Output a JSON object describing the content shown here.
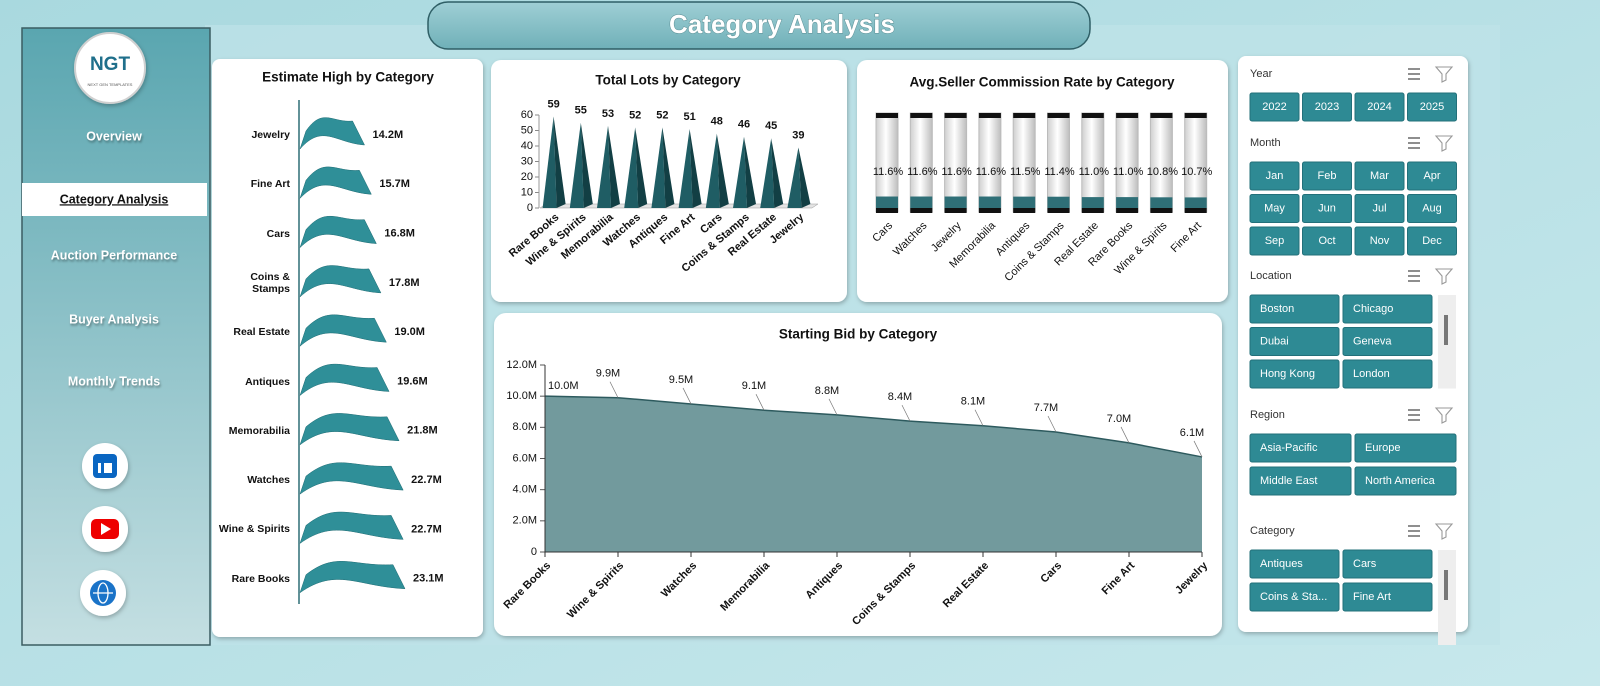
{
  "header": {
    "title": "Category Analysis"
  },
  "nav": {
    "logo": "NGT",
    "logo_subtitle": "NEXT GEN TEMPLATES",
    "active": 1,
    "items": [
      "Overview",
      "Category Analysis",
      "Auction Performance",
      "Buyer Analysis",
      "Monthly Trends"
    ]
  },
  "chart_data": [
    {
      "type": "hbar",
      "title": "Estimate High by Category",
      "color": "#2f8f98",
      "categories": [
        "Jewelry",
        "Fine Art",
        "Cars",
        "Coins & Stamps",
        "Real Estate",
        "Antiques",
        "Memorabilia",
        "Watches",
        "Wine & Spirits",
        "Rare Books"
      ],
      "values": [
        14200000,
        15700000,
        16800000,
        17800000,
        19000000,
        19600000,
        21800000,
        22700000,
        22700000,
        23100000
      ],
      "value_labels": [
        "14.2M",
        "15.7M",
        "16.8M",
        "17.8M",
        "19.0M",
        "19.6M",
        "21.8M",
        "22.7M",
        "22.7M",
        "23.1M"
      ]
    },
    {
      "type": "pyramid",
      "title": "Total Lots by Category",
      "color": "#1f5d64",
      "categories": [
        "Rare Books",
        "Wine & Spirits",
        "Memorabilia",
        "Watches",
        "Antiques",
        "Fine Art",
        "Cars",
        "Coins & Stamps",
        "Real Estate",
        "Jewelry"
      ],
      "values": [
        59,
        55,
        53,
        52,
        52,
        51,
        48,
        46,
        45,
        39
      ],
      "ylim": [
        0,
        60
      ],
      "yticks": [
        0,
        10,
        20,
        30,
        40,
        50,
        60
      ]
    },
    {
      "type": "cylinder",
      "title": "Avg.Seller Commission Rate by Category",
      "color": "#2f6f77",
      "categories": [
        "Cars",
        "Watches",
        "Jewelry",
        "Memorabilia",
        "Antiques",
        "Coins & Stamps",
        "Real Estate",
        "Rare Books",
        "Wine & Spirits",
        "Fine Art"
      ],
      "values": [
        11.6,
        11.6,
        11.6,
        11.6,
        11.5,
        11.4,
        11.0,
        11.0,
        10.8,
        10.7
      ],
      "value_labels": [
        "11.6%",
        "11.6%",
        "11.6%",
        "11.6%",
        "11.5%",
        "11.4%",
        "11.0%",
        "11.0%",
        "10.8%",
        "10.7%"
      ]
    },
    {
      "type": "area",
      "title": "Starting Bid by Category",
      "color": "#6a9598",
      "categories": [
        "Rare Books",
        "Wine & Spirits",
        "Watches",
        "Memorabilia",
        "Antiques",
        "Coins & Stamps",
        "Real Estate",
        "Cars",
        "Fine Art",
        "Jewelry"
      ],
      "values": [
        10000000,
        9900000,
        9500000,
        9100000,
        8800000,
        8400000,
        8100000,
        7700000,
        7000000,
        6100000
      ],
      "value_labels": [
        "10.0M",
        "9.9M",
        "9.5M",
        "9.1M",
        "8.8M",
        "8.4M",
        "8.1M",
        "7.7M",
        "7.0M",
        "6.1M"
      ],
      "ylim": [
        0,
        12000000
      ],
      "yticks": [
        0,
        {
          "value": 2000000,
          "label": "2.0M"
        },
        {
          "value": 4000000,
          "label": "4.0M"
        },
        {
          "value": 6000000,
          "label": "6.0M"
        },
        {
          "value": 8000000,
          "label": "8.0M"
        },
        {
          "value": 10000000,
          "label": "10.0M"
        },
        {
          "value": 12000000,
          "label": "12.0M"
        }
      ]
    }
  ],
  "slicers": [
    {
      "title": "Year",
      "items": [
        "2022",
        "2023",
        "2024",
        "2025"
      ]
    },
    {
      "title": "Month",
      "items": [
        "Jan",
        "Feb",
        "Mar",
        "Apr",
        "May",
        "Jun",
        "Jul",
        "Aug",
        "Sep",
        "Oct",
        "Nov",
        "Dec"
      ]
    },
    {
      "title": "Location",
      "items": [
        "Boston",
        "Chicago",
        "Dubai",
        "Geneva",
        "Hong Kong",
        "London"
      ]
    },
    {
      "title": "Region",
      "items": [
        "Asia-Pacific",
        "Europe",
        "Middle East",
        "North America"
      ]
    },
    {
      "title": "Category",
      "items": [
        "Antiques",
        "Cars",
        "Coins & Sta...",
        "Fine Art"
      ]
    }
  ]
}
